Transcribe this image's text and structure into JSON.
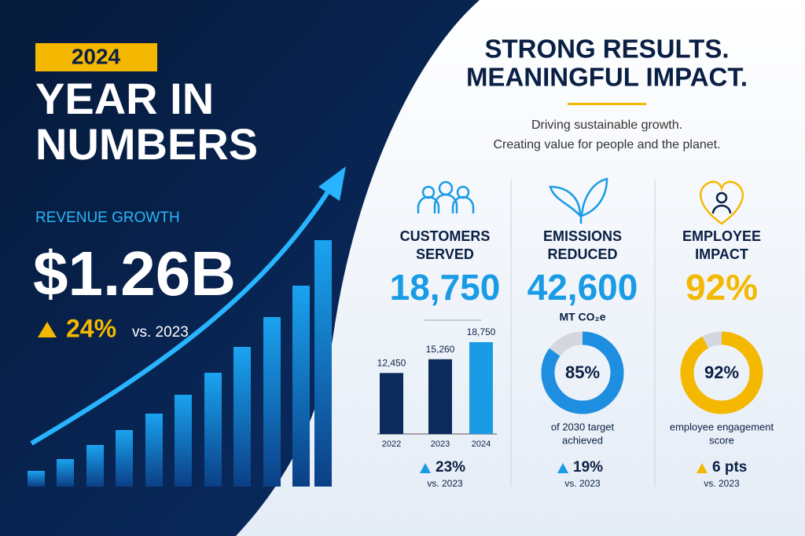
{
  "header": {
    "year": "2024",
    "title_lines": [
      "YEAR IN",
      "NUMBERS"
    ],
    "revenue_label": "REVENUE GROWTH",
    "revenue_value": "$1.26B",
    "growth": "24%",
    "growth_compare": "vs. 2023"
  },
  "hero": {
    "title_lines": [
      "STRONG RESULTS.",
      "MEANINGFUL IMPACT."
    ],
    "subtitle_lines": [
      "Driving sustainable growth.",
      "Creating value for people and the planet."
    ]
  },
  "panels": [
    {
      "title_lines": [
        "CUSTOMERS",
        "SERVED"
      ],
      "value": "18,750",
      "chart": {
        "type": "bar",
        "categories": [
          "2022",
          "2023",
          "2024"
        ],
        "values": [
          12450,
          15260,
          18750
        ],
        "value_labels": [
          "12,450",
          "15,260",
          "18,750"
        ],
        "colors": [
          "#0d2a5c",
          "#0d2a5c",
          "#1a9be6"
        ]
      },
      "change": "23%",
      "compare": "vs. 2023"
    },
    {
      "title_lines": [
        "EMISSIONS",
        "REDUCED"
      ],
      "value": "42,600",
      "unit": "MT CO₂e",
      "chart": {
        "type": "donut",
        "value": 85,
        "value_label": "85%",
        "color": "#1e8fe0"
      },
      "caption_lines": [
        "of 2030 target",
        "achieved"
      ],
      "change": "19%",
      "compare": "vs. 2023"
    },
    {
      "title_lines": [
        "EMPLOYEE",
        "IMPACT"
      ],
      "value": "92%",
      "chart": {
        "type": "donut",
        "value": 92,
        "value_label": "92%",
        "color": "#f5b800"
      },
      "caption_lines": [
        "employee engagement",
        "score"
      ],
      "change": "6 pts",
      "compare": "vs. 2023"
    }
  ]
}
